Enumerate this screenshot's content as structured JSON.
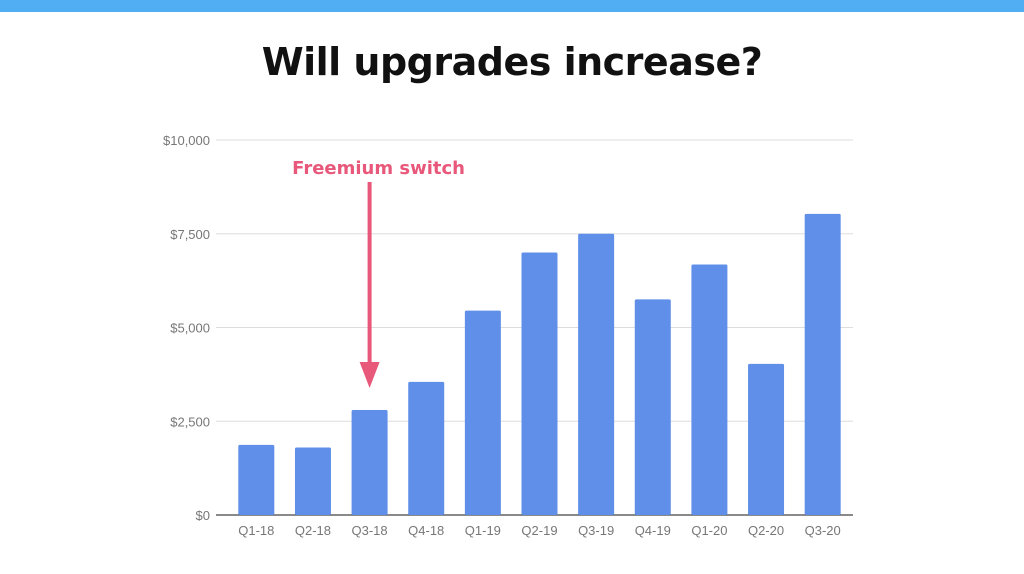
{
  "title": "Will upgrades increase?",
  "colors": {
    "banner": "#52aef2",
    "bar": "#5f8fe8",
    "annotation": "#e8587a"
  },
  "chart_data": {
    "type": "bar",
    "title": "Will upgrades increase?",
    "xlabel": "",
    "ylabel": "",
    "categories": [
      "Q1-18",
      "Q2-18",
      "Q3-18",
      "Q4-18",
      "Q1-19",
      "Q2-19",
      "Q3-19",
      "Q4-19",
      "Q1-20",
      "Q2-20",
      "Q3-20"
    ],
    "values": [
      1870,
      1800,
      2800,
      3550,
      5450,
      7000,
      7500,
      5750,
      6680,
      4030,
      8030
    ],
    "ylim": [
      0,
      10000
    ],
    "yticks": [
      0,
      2500,
      5000,
      7500,
      10000
    ],
    "ytick_labels": [
      "$0",
      "$2,500",
      "$5,000",
      "$7,500",
      "$10,000"
    ],
    "grid": true,
    "legend": "none",
    "annotations": [
      {
        "text": "Freemium switch",
        "category": "Q3-18",
        "arrow": "down"
      }
    ]
  }
}
